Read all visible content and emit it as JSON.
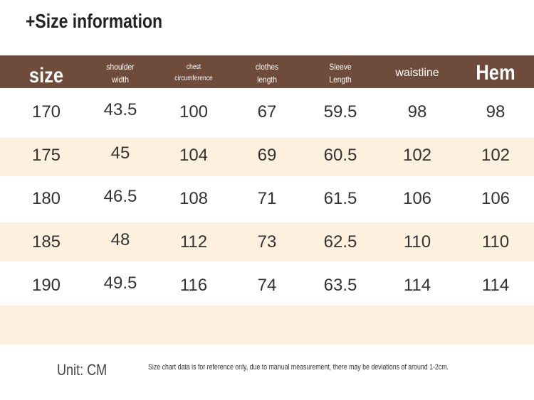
{
  "header": {
    "title": "+Size information"
  },
  "table": {
    "columns": [
      [
        "size"
      ],
      [
        "shoulder",
        "width"
      ],
      [
        "chest",
        "circumference"
      ],
      [
        "clothes",
        "length"
      ],
      [
        "Sleeve",
        "Length"
      ],
      [
        "waistline"
      ],
      [
        "Hem"
      ]
    ],
    "rows": [
      [
        170,
        43.5,
        100,
        67,
        59.5,
        98,
        98
      ],
      [
        175,
        45,
        104,
        69,
        60.5,
        102,
        102
      ],
      [
        180,
        46.5,
        108,
        71,
        61.5,
        106,
        106
      ],
      [
        185,
        48,
        112,
        73,
        62.5,
        110,
        110
      ],
      [
        190,
        49.5,
        116,
        74,
        63.5,
        114,
        114
      ]
    ]
  },
  "footer": {
    "unit": "Unit: CM",
    "note": "Size chart data is for reference only, due to manual measurement, there may be deviations of around 1-2cm."
  }
}
